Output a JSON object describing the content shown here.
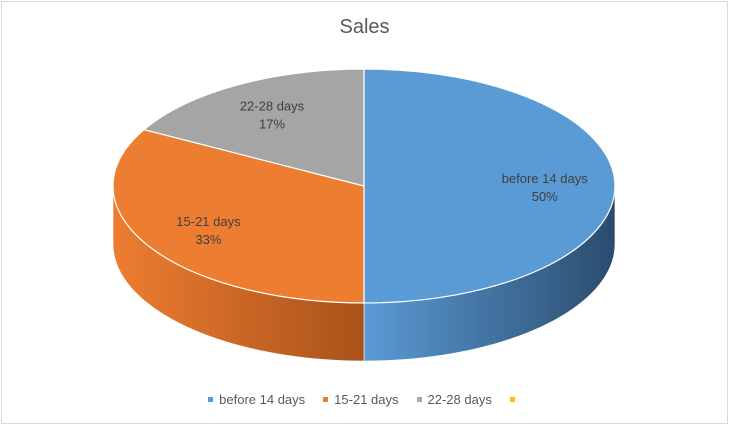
{
  "chart_data": {
    "type": "pie",
    "title": "Sales",
    "slices": [
      {
        "name": "before 14 days",
        "value": 50,
        "label": "50%",
        "color": "#5b9bd5",
        "side_color": "#2a4c6e"
      },
      {
        "name": "15-21 days",
        "value": 33,
        "label": "33%",
        "color": "#ed7d31",
        "side_color": "#a9521a"
      },
      {
        "name": "22-28 days",
        "value": 17,
        "label": "17%",
        "color": "#a5a5a5",
        "side_color": "#6f6f6f"
      }
    ],
    "legend": {
      "placement": "bottom",
      "entries": [
        {
          "name": "before 14 days",
          "color": "#5b9bd5"
        },
        {
          "name": "15-21 days",
          "color": "#ed7d31"
        },
        {
          "name": "22-28 days",
          "color": "#a5a5a5"
        },
        {
          "name": "",
          "color": "#ffc000"
        }
      ]
    }
  }
}
